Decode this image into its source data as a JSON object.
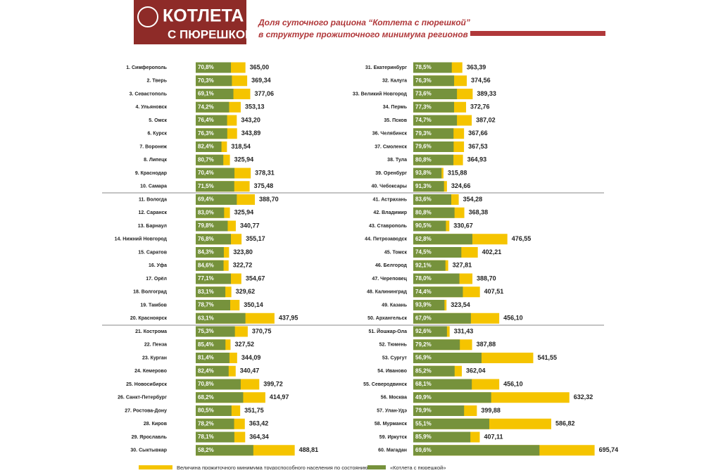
{
  "header": {
    "logo": [
      "КОТЛЕТА",
      "С ПЮРЕШКОЙ"
    ],
    "title": [
      "Доля суточного рациона “Котлета с пюрешкой”",
      "в структуре прожиточного минимума регионов"
    ]
  },
  "chart_data": {
    "type": "bar",
    "categories": [
      "1. Симферополь",
      "2. Тверь",
      "3. Севастополь",
      "4. Ульяновск",
      "5. Омск",
      "6. Курск",
      "7. Воронеж",
      "8. Липецк",
      "9. Краснодар",
      "10. Самара",
      "11. Вологда",
      "12. Саранск",
      "13. Барнаул",
      "14. Нижний Новгород",
      "15. Саратов",
      "16. Уфа",
      "17. Орёл",
      "18. Волгоград",
      "19. Тамбов",
      "20. Красноярск",
      "21. Кострома",
      "22. Пенза",
      "23. Курган",
      "24. Кемерово",
      "25. Новосибирск",
      "26. Санкт-Петербург",
      "27. Ростова-Дону",
      "28. Киров",
      "29. Ярославль",
      "30. Сыктывкар",
      "31. Екатеринбург",
      "32. Калуга",
      "33. Великий Новгород",
      "34. Пермь",
      "35. Псков",
      "36. Челябинск",
      "37. Смоленск",
      "38. Тула",
      "39. Оренбург",
      "40. Чебоксары",
      "41. Астрахань",
      "42. Владимир",
      "43. Ставрополь",
      "44. Петрозаводск",
      "45. Томск",
      "46. Белгород",
      "47. Череповец",
      "48. Калининград",
      "49. Казань",
      "50. Архангельск",
      "51. Йошкар-Ола",
      "52. Тюмень",
      "53. Сургут",
      "54. Иваново",
      "55. Северодвинск",
      "56. Москва",
      "57. Улан-Удэ",
      "58. Мурманск",
      "59. Иркутск",
      "60. Магадан"
    ],
    "xlim": [
      240,
      700
    ],
    "series": [
      {
        "name": "Величина прожиточного минимума трудоспособного населения по состоянию на",
        "color": "#f5c400",
        "values": [
          365.0,
          369.34,
          377.06,
          353.13,
          343.2,
          343.89,
          318.54,
          325.94,
          378.31,
          375.48,
          388.7,
          325.94,
          340.77,
          355.17,
          323.8,
          322.72,
          354.67,
          329.62,
          350.14,
          437.95,
          370.75,
          327.52,
          344.09,
          340.47,
          399.72,
          414.97,
          351.75,
          363.42,
          364.34,
          488.81,
          363.39,
          374.56,
          389.33,
          372.76,
          387.02,
          367.66,
          367.53,
          364.93,
          315.88,
          324.66,
          354.28,
          368.38,
          330.67,
          476.55,
          402.21,
          327.81,
          388.7,
          407.51,
          323.54,
          456.1,
          331.43,
          387.88,
          541.55,
          362.04,
          456.1,
          632.32,
          399.88,
          586.82,
          407.11,
          695.74
        ],
        "value_labels": [
          "365,00",
          "369,34",
          "377,06",
          "353,13",
          "343,20",
          "343,89",
          "318,54",
          "325,94",
          "378,31",
          "375,48",
          "388,70",
          "325,94",
          "340,77",
          "355,17",
          "323,80",
          "322,72",
          "354,67",
          "329,62",
          "350,14",
          "437,95",
          "370,75",
          "327,52",
          "344,09",
          "340,47",
          "399,72",
          "414,97",
          "351,75",
          "363,42",
          "364,34",
          "488,81",
          "363,39",
          "374,56",
          "389,33",
          "372,76",
          "387,02",
          "367,66",
          "367,53",
          "364,93",
          "315,88",
          "324,66",
          "354,28",
          "368,38",
          "330,67",
          "476,55",
          "402,21",
          "327,81",
          "388,70",
          "407,51",
          "323,54",
          "456,10",
          "331,43",
          "387,88",
          "541,55",
          "362,04",
          "456,10",
          "632,32",
          "399,88",
          "586,82",
          "407,11",
          "695,74"
        ]
      },
      {
        "name": "«Котлета с пюрешкой»",
        "color": "#76923c",
        "values": [
          70.8,
          70.3,
          69.1,
          74.2,
          76.4,
          76.3,
          82.4,
          80.7,
          70.4,
          71.5,
          69.4,
          83.0,
          79.8,
          76.8,
          84.3,
          84.6,
          77.1,
          83.1,
          78.7,
          63.1,
          75.3,
          85.4,
          81.4,
          82.4,
          70.8,
          68.2,
          80.5,
          78.2,
          78.1,
          58.2,
          78.5,
          76.3,
          73.6,
          77.3,
          74.7,
          79.3,
          79.6,
          80.8,
          93.8,
          91.3,
          83.6,
          80.8,
          90.5,
          62.8,
          74.5,
          92.1,
          78.0,
          74.4,
          93.9,
          67.0,
          92.6,
          79.2,
          56.9,
          85.2,
          68.1,
          49.9,
          79.9,
          55.1,
          85.9,
          69.6
        ],
        "value_labels": [
          "70,8%",
          "70,3%",
          "69,1%",
          "74,2%",
          "76,4%",
          "76,3%",
          "82,4%",
          "80,7%",
          "70,4%",
          "71,5%",
          "69,4%",
          "83,0%",
          "79,8%",
          "76,8%",
          "84,3%",
          "84,6%",
          "77,1%",
          "83,1%",
          "78,7%",
          "63,1%",
          "75,3%",
          "85,4%",
          "81,4%",
          "82,4%",
          "70,8%",
          "68,2%",
          "80,5%",
          "78,2%",
          "78,1%",
          "58,2%",
          "78,5%",
          "76,3%",
          "73,6%",
          "77,3%",
          "74,7%",
          "79,3%",
          "79,6%",
          "80,8%",
          "93,8%",
          "91,3%",
          "83,6%",
          "80,8%",
          "90,5%",
          "62,8%",
          "74,5%",
          "92,1%",
          "78,0%",
          "74,4%",
          "93,9%",
          "67,0%",
          "92,6%",
          "79,2%",
          "56,9%",
          "85,2%",
          "68,1%",
          "49,9%",
          "79,9%",
          "55,1%",
          "85,9%",
          "69,6%"
        ]
      }
    ]
  }
}
